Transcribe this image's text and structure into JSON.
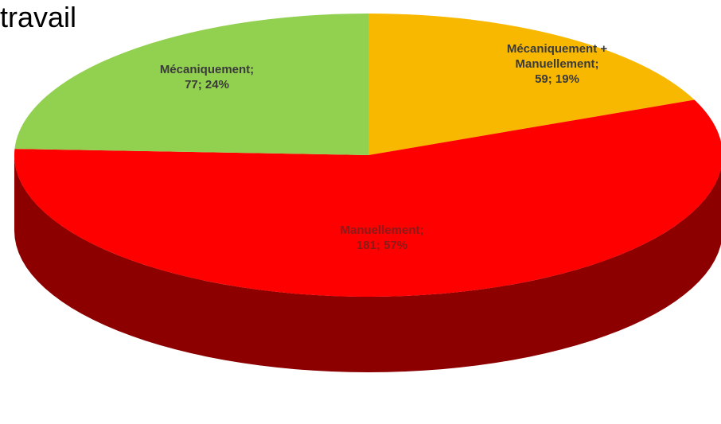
{
  "chart_data": {
    "type": "pie",
    "title": "travail",
    "categories": [
      "Mécaniquement + Manuellement;",
      "Manuellement;",
      "Mécaniquement;"
    ],
    "values": [
      59,
      181,
      77
    ],
    "value_labels": [
      "59; 19%",
      "181; 57%",
      "77; 24%"
    ],
    "colors": [
      "#f9b800",
      "#ff0000",
      "#92d050"
    ],
    "three_d": true
  }
}
